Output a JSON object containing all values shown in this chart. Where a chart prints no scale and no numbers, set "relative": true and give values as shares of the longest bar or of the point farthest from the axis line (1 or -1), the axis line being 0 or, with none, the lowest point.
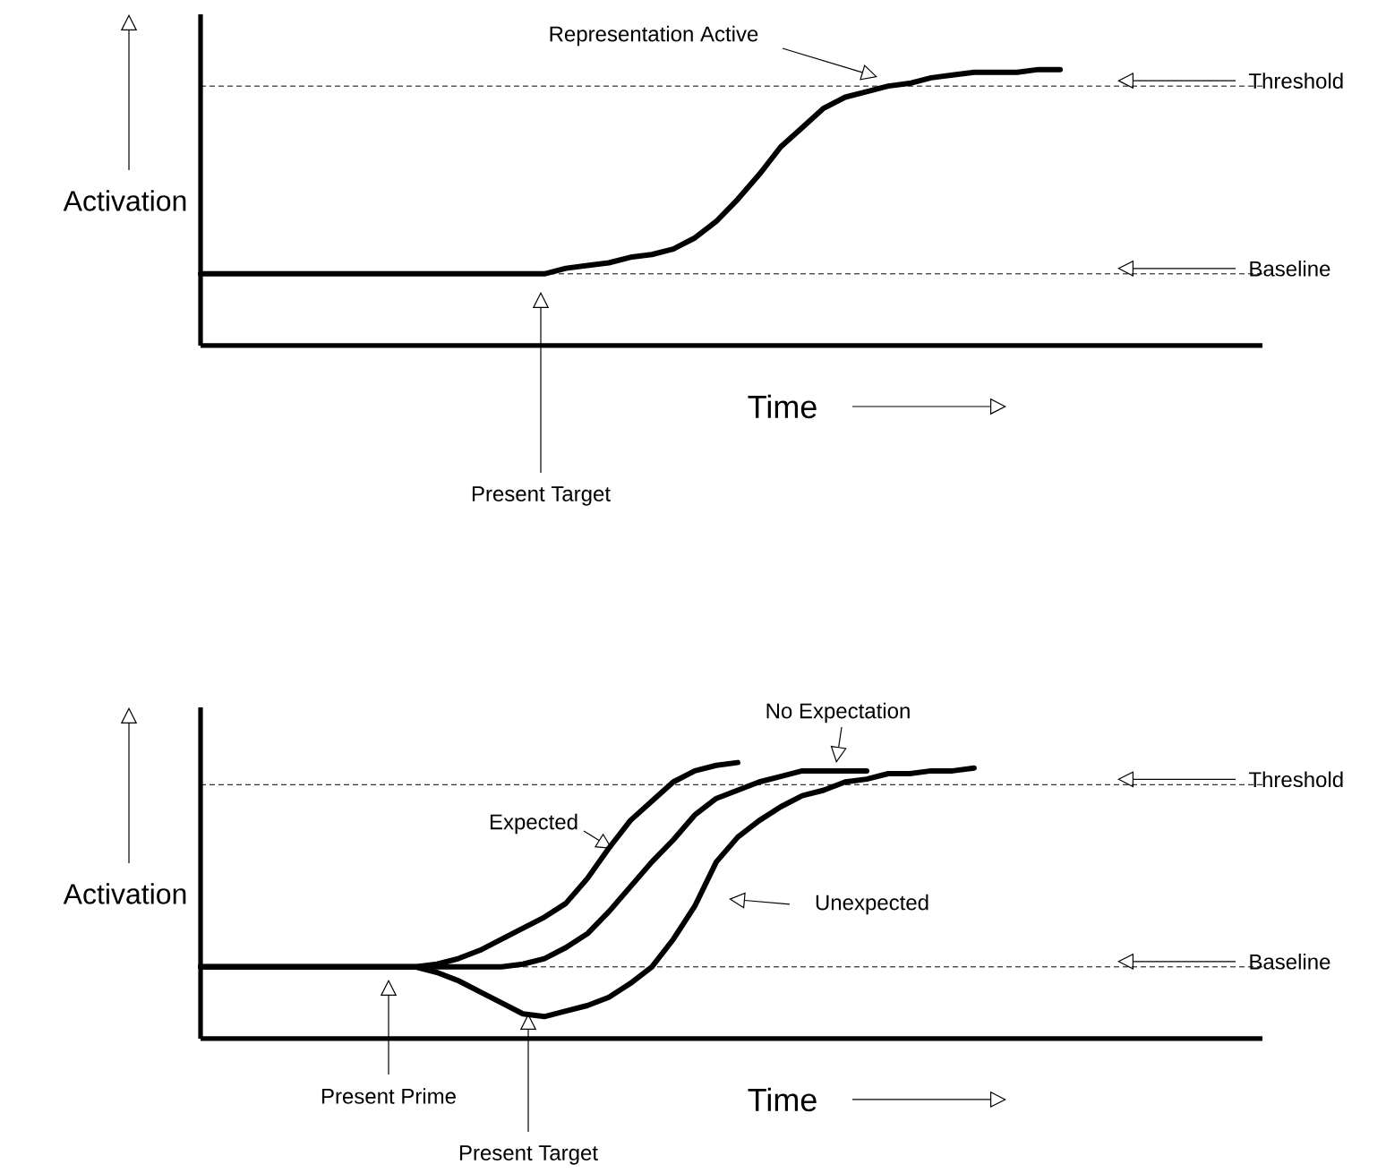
{
  "chart_data": [
    {
      "type": "line",
      "relative": true,
      "xlabel": "Time",
      "ylabel": "Activation",
      "categories": [
        null,
        null,
        null,
        null,
        null,
        null,
        null,
        null,
        null,
        null,
        null,
        null,
        null,
        null,
        null,
        null,
        null,
        null,
        null,
        null,
        null,
        null,
        null,
        null,
        null,
        null,
        null,
        null,
        null,
        null,
        null,
        null,
        null,
        null,
        null,
        null,
        null,
        null,
        null,
        null,
        null,
        null,
        null,
        null,
        null,
        null,
        null,
        null,
        null,
        null
      ],
      "series": [
        {
          "color": "#000000",
          "values": [
            0.26,
            0.26,
            0.26,
            0.26,
            0.26,
            0.26,
            0.26,
            0.26,
            0.26,
            0.26,
            0.26,
            0.26,
            0.26,
            0.26,
            0.26,
            0.26,
            0.26,
            0.28,
            0.29,
            0.3,
            0.32,
            0.33,
            0.35,
            0.39,
            0.45,
            0.53,
            0.62,
            0.72,
            0.79,
            0.86,
            0.9,
            0.92,
            0.94,
            0.95,
            0.97,
            0.98,
            0.99,
            0.99,
            0.99,
            1.0,
            1.0,
            null,
            null,
            null,
            null,
            null,
            null,
            null,
            null,
            null
          ]
        }
      ],
      "ref_lines": [
        {
          "axis": "y",
          "value": 0.94,
          "label": "Threshold",
          "line_style": "dashed",
          "color": "#000000"
        },
        {
          "axis": "y",
          "value": 0.26,
          "label": "Baseline",
          "line_style": "dashed",
          "color": "#000000"
        }
      ],
      "annotations": [
        "Representation Active",
        "Present Target"
      ]
    },
    {
      "type": "line",
      "relative": true,
      "xlabel": "Time",
      "ylabel": "Activation",
      "categories": [
        null,
        null,
        null,
        null,
        null,
        null,
        null,
        null,
        null,
        null,
        null,
        null,
        null,
        null,
        null,
        null,
        null,
        null,
        null,
        null,
        null,
        null,
        null,
        null,
        null,
        null,
        null,
        null,
        null,
        null,
        null,
        null,
        null,
        null,
        null,
        null,
        null,
        null,
        null,
        null,
        null,
        null,
        null,
        null,
        null,
        null,
        null,
        null,
        null,
        null
      ],
      "series": [
        {
          "name": "Expected",
          "color": "#000000",
          "values": [
            0.26,
            0.26,
            0.26,
            0.26,
            0.26,
            0.26,
            0.26,
            0.26,
            0.26,
            0.26,
            0.26,
            0.27,
            0.29,
            0.32,
            0.36,
            0.4,
            0.44,
            0.49,
            0.58,
            0.69,
            0.79,
            0.86,
            0.93,
            0.97,
            0.99,
            1.0,
            null,
            null,
            null,
            null,
            null,
            null,
            null,
            null,
            null,
            null,
            null,
            null,
            null,
            null,
            null,
            null,
            null,
            null,
            null,
            null,
            null,
            null,
            null,
            null
          ]
        },
        {
          "name": "No Expectation",
          "color": "#000000",
          "values": [
            0.26,
            0.26,
            0.26,
            0.26,
            0.26,
            0.26,
            0.26,
            0.26,
            0.26,
            0.26,
            0.26,
            0.26,
            0.26,
            0.26,
            0.26,
            0.27,
            0.29,
            0.33,
            0.38,
            0.46,
            0.55,
            0.64,
            0.72,
            0.81,
            0.87,
            0.9,
            0.93,
            0.95,
            0.97,
            0.97,
            0.97,
            0.97,
            null,
            null,
            null,
            null,
            null,
            null,
            null,
            null,
            null,
            null,
            null,
            null,
            null,
            null,
            null,
            null,
            null,
            null
          ]
        },
        {
          "name": "Unexpected",
          "color": "#000000",
          "values": [
            0.26,
            0.26,
            0.26,
            0.26,
            0.26,
            0.26,
            0.26,
            0.26,
            0.26,
            0.26,
            0.26,
            0.24,
            0.21,
            0.17,
            0.13,
            0.09,
            0.08,
            0.1,
            0.12,
            0.15,
            0.2,
            0.26,
            0.36,
            0.48,
            0.64,
            0.73,
            0.79,
            0.84,
            0.88,
            0.9,
            0.93,
            0.94,
            0.96,
            0.96,
            0.97,
            0.97,
            0.98,
            null,
            null,
            null,
            null,
            null,
            null,
            null,
            null,
            null,
            null,
            null,
            null,
            null
          ]
        }
      ],
      "ref_lines": [
        {
          "axis": "y",
          "value": 0.92,
          "label": "Threshold",
          "line_style": "dashed",
          "color": "#000000"
        },
        {
          "axis": "y",
          "value": 0.26,
          "label": "Baseline",
          "line_style": "dashed",
          "color": "#000000"
        }
      ],
      "annotations": [
        "Present Prime",
        "Present Target"
      ]
    }
  ]
}
